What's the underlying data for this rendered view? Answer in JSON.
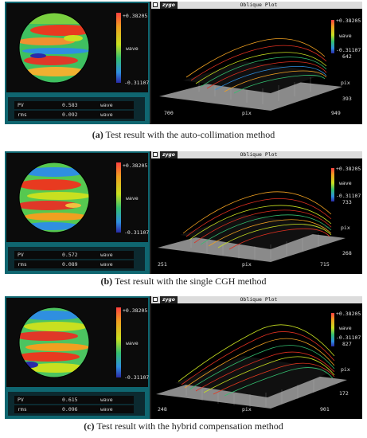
{
  "figures": [
    {
      "scale_max": "+0.38205",
      "scale_unit": "wave",
      "scale_min": "-0.31107",
      "pv_label": "PV",
      "pv_value": "0.583",
      "pv_unit": "wave",
      "rms_label": "rms",
      "rms_value": "0.092",
      "rms_unit": "wave",
      "logo": "zygo",
      "window_title": "Oblique Plot",
      "plot_scale_max": "+0.38205",
      "plot_scale_unit": "wave",
      "plot_scale_min": "-0.31107",
      "y_max": "642",
      "y_min": "393",
      "y_label": "pix",
      "x_min": "700",
      "x_max": "949",
      "x_label": "pix",
      "caption_tag": "(a)",
      "caption_text": "Test result with the auto-collimation method"
    },
    {
      "scale_max": "+0.38205",
      "scale_unit": "wave",
      "scale_min": "-0.31107",
      "pv_label": "PV",
      "pv_value": "0.572",
      "pv_unit": "wave",
      "rms_label": "rms",
      "rms_value": "0.089",
      "rms_unit": "wave",
      "logo": "zygo",
      "window_title": "Oblique Plot",
      "plot_scale_max": "+0.38205",
      "plot_scale_unit": "wave",
      "plot_scale_min": "-0.31107",
      "y_max": "733",
      "y_min": "268",
      "y_label": "pix",
      "x_min": "251",
      "x_max": "715",
      "x_label": "pix",
      "caption_tag": "(b)",
      "caption_text": "Test result with the single CGH method"
    },
    {
      "scale_max": "+0.38205",
      "scale_unit": "wave",
      "scale_min": "-0.31107",
      "pv_label": "PV",
      "pv_value": "0.615",
      "pv_unit": "wave",
      "rms_label": "rms",
      "rms_value": "0.096",
      "rms_unit": "wave",
      "logo": "zygo",
      "window_title": "Oblique Plot",
      "plot_scale_max": "+0.38205",
      "plot_scale_unit": "wave",
      "plot_scale_min": "-0.31107",
      "y_max": "827",
      "y_min": "172",
      "y_label": "pix",
      "x_min": "248",
      "x_max": "901",
      "x_label": "pix",
      "caption_tag": "(c)",
      "caption_text": "Test result with the hybrid compensation method"
    }
  ],
  "colors": {
    "panel_teal": "#0f6670",
    "colormap": [
      "#2a2aa8",
      "#2f8fe0",
      "#33c070",
      "#c8e020",
      "#f0a020",
      "#e03020"
    ]
  }
}
